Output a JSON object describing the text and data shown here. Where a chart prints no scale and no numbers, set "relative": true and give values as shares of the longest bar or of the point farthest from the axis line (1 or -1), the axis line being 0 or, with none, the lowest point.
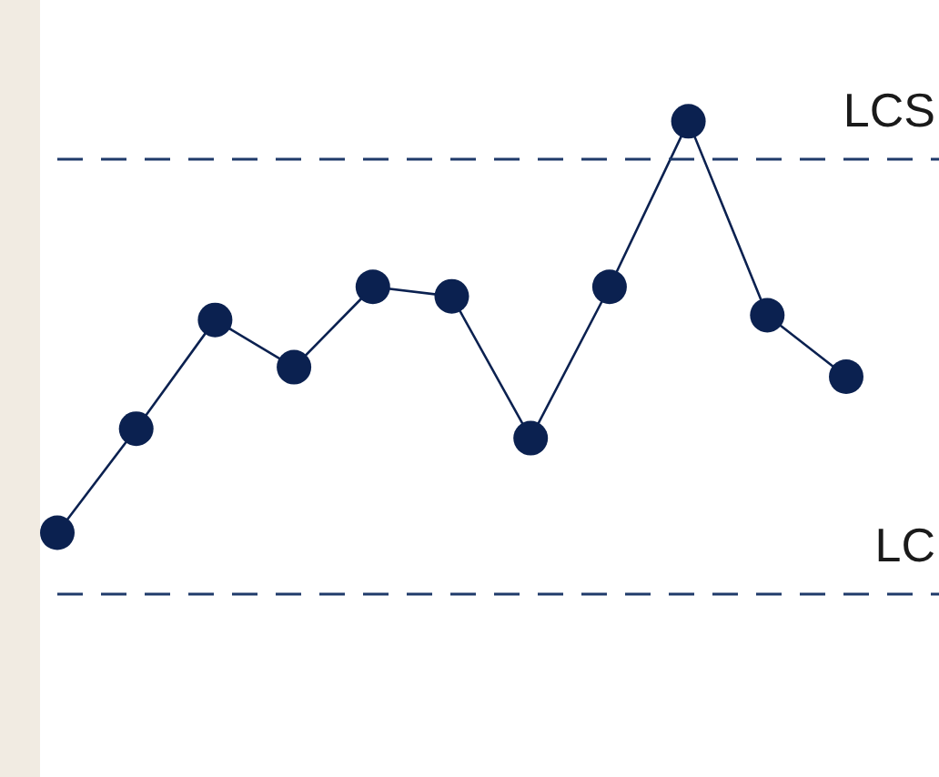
{
  "chart_data": {
    "type": "line",
    "relative": true,
    "legend": false,
    "marker": "circle",
    "categories": [
      null,
      null,
      null,
      null,
      null,
      null,
      null,
      null,
      null,
      null,
      null
    ],
    "series": [
      {
        "color": "#0b2150",
        "values": [
          0.13,
          0.35,
          0.58,
          0.48,
          0.65,
          0.63,
          0.33,
          0.65,
          1,
          0.59,
          0.46
        ]
      }
    ],
    "ref_lines": [
      {
        "axis": "y",
        "value": 0.92,
        "label": "LCS",
        "color": "#1f3a6a",
        "line_style": "dashed"
      },
      {
        "axis": "y",
        "value": 0,
        "label": "LC",
        "color": "#1f3a6a",
        "line_style": "dashed"
      }
    ]
  }
}
